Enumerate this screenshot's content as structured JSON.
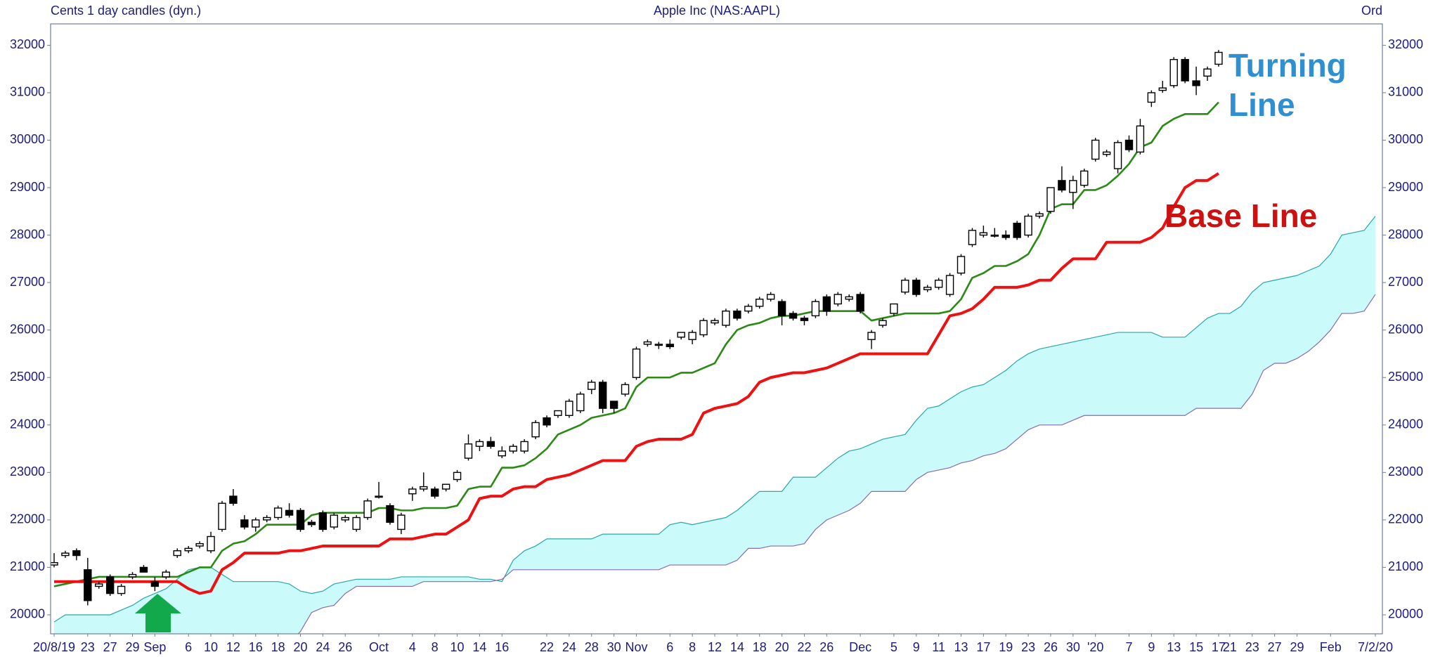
{
  "chart_data": {
    "type": "candlestick",
    "left_label": "Cents 1 day candles (dyn.)",
    "title": "Apple Inc (NAS:AAPL)",
    "right_label": "Ord",
    "categories": [
      "20/8/19",
      null,
      null,
      "23",
      null,
      "27",
      null,
      "29",
      null,
      "Sep",
      null,
      null,
      "6",
      null,
      "10",
      null,
      "12",
      null,
      "16",
      null,
      "18",
      null,
      "20",
      null,
      "24",
      null,
      "26",
      null,
      null,
      "Oct",
      null,
      null,
      "4",
      null,
      "8",
      null,
      "10",
      null,
      "14",
      null,
      "16",
      null,
      null,
      null,
      "22",
      null,
      "24",
      null,
      "28",
      null,
      "30",
      null,
      "Nov",
      null,
      null,
      "6",
      null,
      "8",
      null,
      "12",
      null,
      "14",
      null,
      "18",
      null,
      "20",
      null,
      "22",
      null,
      "26",
      null,
      null,
      "Dec",
      null,
      null,
      "5",
      null,
      "9",
      null,
      "11",
      null,
      "13",
      null,
      "17",
      null,
      "19",
      null,
      "23",
      null,
      "26",
      null,
      "30",
      null,
      "'20",
      null,
      null,
      "7",
      null,
      "9",
      null,
      "13",
      null,
      "15",
      null,
      "17",
      "21",
      null,
      "23",
      null,
      "27",
      null,
      "29",
      null,
      null,
      "Feb",
      null,
      null,
      null,
      "7/2/20"
    ],
    "ylim": [
      19600,
      32450
    ],
    "yticks": [
      20000,
      21000,
      22000,
      23000,
      24000,
      25000,
      26000,
      27000,
      28000,
      29000,
      30000,
      31000,
      32000
    ],
    "up_color": "#ffffff",
    "down_color": "#000000",
    "candles": {
      "open": [
        21050,
        21250,
        21350,
        20950,
        20600,
        20800,
        20450,
        20800,
        21000,
        20700,
        20800,
        21250,
        21350,
        21450,
        21350,
        21800,
        22500,
        22000,
        21850,
        22000,
        22050,
        22200,
        22200,
        21950,
        22150,
        21850,
        22000,
        21800,
        22050,
        22500,
        22300,
        21800,
        22550,
        22650,
        22650,
        22650,
        22850,
        23300,
        23550,
        23650,
        23350,
        23450,
        23450,
        23750,
        24150,
        24200,
        24200,
        24300,
        24750,
        24900,
        24500,
        24650,
        25000,
        25700,
        25700,
        25700,
        25850,
        25800,
        25900,
        26150,
        26100,
        26400,
        26400,
        26500,
        26650,
        26600,
        26350,
        26250,
        26300,
        26700,
        26550,
        26650,
        26750,
        25800,
        26100,
        26350,
        26800,
        27050,
        26850,
        26900,
        26750,
        27200,
        27800,
        28000,
        28000,
        28000,
        28250,
        28000,
        28400,
        28500,
        29150,
        28900,
        29050,
        29600,
        29700,
        29400,
        30000,
        29750,
        30800,
        31050,
        31150,
        31700,
        31250,
        31350,
        31600
      ],
      "high": [
        21300,
        21350,
        21400,
        21200,
        20700,
        20850,
        20650,
        20900,
        21050,
        20800,
        20950,
        21400,
        21450,
        21550,
        21750,
        22400,
        22650,
        22100,
        22050,
        22100,
        22300,
        22350,
        22250,
        22000,
        22200,
        22150,
        22100,
        22100,
        22450,
        22800,
        22350,
        22150,
        22700,
        23000,
        22700,
        22750,
        23050,
        23800,
        23700,
        23750,
        23550,
        23600,
        23700,
        24100,
        24200,
        24300,
        24550,
        24700,
        24950,
        24950,
        24500,
        24900,
        25650,
        25800,
        25750,
        25800,
        25950,
        26000,
        26250,
        26250,
        26450,
        26450,
        26550,
        26700,
        26800,
        26650,
        26400,
        26300,
        26650,
        26750,
        26800,
        26750,
        26800,
        26000,
        26250,
        26550,
        27100,
        27100,
        26950,
        27100,
        27200,
        27600,
        28150,
        28200,
        28150,
        28100,
        28300,
        28450,
        28500,
        29000,
        29450,
        29250,
        29400,
        30050,
        29800,
        30000,
        30100,
        30450,
        31050,
        31250,
        31750,
        31750,
        31550,
        31550,
        31900
      ],
      "low": [
        21000,
        21200,
        21150,
        20200,
        20550,
        20400,
        20400,
        20750,
        20900,
        20500,
        20750,
        21200,
        21300,
        21400,
        21300,
        21750,
        22300,
        21800,
        21750,
        21950,
        22000,
        22050,
        21750,
        21850,
        21750,
        21800,
        21950,
        21750,
        22000,
        22450,
        21900,
        21700,
        22400,
        22600,
        22450,
        22600,
        22800,
        23250,
        23450,
        23500,
        23300,
        23400,
        23400,
        23700,
        23950,
        24150,
        24150,
        24250,
        24650,
        24250,
        24250,
        24600,
        24950,
        25650,
        25600,
        25600,
        25800,
        25700,
        25850,
        26100,
        26050,
        26200,
        26350,
        26450,
        26600,
        26100,
        26200,
        26100,
        26250,
        26300,
        26500,
        26600,
        26350,
        25600,
        26050,
        26300,
        26750,
        26700,
        26800,
        26850,
        26700,
        27150,
        27750,
        27950,
        27950,
        27900,
        27900,
        27950,
        28350,
        28450,
        28900,
        28550,
        29000,
        29550,
        29650,
        29300,
        29750,
        29700,
        30700,
        31000,
        31100,
        31200,
        30950,
        31250,
        31550
      ],
      "close": [
        21100,
        21300,
        21250,
        20300,
        20650,
        20450,
        20600,
        20850,
        20900,
        20600,
        20900,
        21350,
        21400,
        21500,
        21650,
        22350,
        22350,
        21850,
        22000,
        22050,
        22250,
        22100,
        21800,
        21900,
        21800,
        22100,
        22050,
        22050,
        22400,
        22500,
        21950,
        22100,
        22650,
        22700,
        22500,
        22750,
        23000,
        23600,
        23650,
        23550,
        23450,
        23550,
        23650,
        24050,
        24000,
        24300,
        24500,
        24650,
        24900,
        24350,
        24350,
        24850,
        25600,
        25750,
        25700,
        25650,
        25950,
        25950,
        26200,
        26200,
        26400,
        26250,
        26500,
        26650,
        26750,
        26300,
        26250,
        26200,
        26600,
        26400,
        26750,
        26700,
        26400,
        25950,
        26200,
        26550,
        27050,
        26750,
        26900,
        27050,
        27150,
        27550,
        28100,
        28050,
        28000,
        27950,
        27950,
        28400,
        28450,
        29000,
        28950,
        29150,
        29350,
        30000,
        29750,
        29950,
        29800,
        30300,
        31000,
        31100,
        31700,
        31250,
        31150,
        31500,
        31850
      ]
    },
    "lines": [
      {
        "color": "#2a8a14",
        "values": [
          20600,
          20650,
          20700,
          20750,
          20800,
          20800,
          20800,
          20800,
          20800,
          20800,
          20800,
          20800,
          20900,
          21000,
          21000,
          21350,
          21500,
          21550,
          21700,
          21900,
          21900,
          21900,
          21900,
          22100,
          22150,
          22150,
          22150,
          22150,
          22150,
          22250,
          22250,
          22200,
          22200,
          22250,
          22250,
          22250,
          22300,
          22650,
          22700,
          22700,
          23100,
          23100,
          23150,
          23300,
          23500,
          23800,
          23900,
          24000,
          24150,
          24200,
          24250,
          24350,
          24800,
          25000,
          25000,
          25000,
          25100,
          25100,
          25200,
          25300,
          25700,
          26000,
          26100,
          26150,
          26250,
          26300,
          26300,
          26350,
          26400,
          26400,
          26400,
          26400,
          26400,
          26200,
          26250,
          26300,
          26350,
          26350,
          26350,
          26350,
          26400,
          26650,
          27100,
          27200,
          27350,
          27350,
          27450,
          27600,
          28000,
          28550,
          28650,
          28650,
          28950,
          28950,
          29050,
          29250,
          29500,
          29850,
          29950,
          30300,
          30450,
          30550,
          30550,
          30550,
          30800
        ]
      },
      {
        "color": "#ee1111",
        "values": [
          20700,
          20700,
          20700,
          20700,
          20700,
          20700,
          20700,
          20700,
          20700,
          20700,
          20700,
          20700,
          20550,
          20450,
          20500,
          20950,
          21100,
          21300,
          21300,
          21300,
          21300,
          21350,
          21350,
          21400,
          21450,
          21450,
          21450,
          21450,
          21450,
          21450,
          21600,
          21600,
          21600,
          21650,
          21700,
          21700,
          21850,
          22000,
          22450,
          22500,
          22500,
          22650,
          22700,
          22700,
          22850,
          22900,
          22950,
          23050,
          23150,
          23250,
          23250,
          23250,
          23550,
          23650,
          23700,
          23700,
          23700,
          23800,
          24250,
          24350,
          24400,
          24450,
          24600,
          24900,
          25000,
          25050,
          25100,
          25100,
          25150,
          25200,
          25300,
          25400,
          25500,
          25500,
          25500,
          25500,
          25500,
          25500,
          25500,
          25900,
          26300,
          26350,
          26450,
          26650,
          26900,
          26900,
          26900,
          26950,
          27050,
          27050,
          27300,
          27500,
          27500,
          27500,
          27850,
          27850,
          27850,
          27850,
          27950,
          28150,
          28600,
          29000,
          29150,
          29150,
          29300
        ]
      }
    ],
    "cloud": {
      "color": "#cbfafa",
      "span_a_color": "#2aa7a7",
      "span_b_color": "#8a6bb0",
      "span_a": [
        19850,
        20000,
        20000,
        20000,
        20000,
        20000,
        20100,
        20200,
        20350,
        20450,
        20550,
        20750,
        20950,
        21000,
        21000,
        20850,
        20700,
        20700,
        20700,
        20700,
        20700,
        20650,
        20500,
        20450,
        20500,
        20650,
        20700,
        20750,
        20750,
        20750,
        20750,
        20800,
        20800,
        20800,
        20800,
        20800,
        20800,
        20800,
        20750,
        20750,
        20700,
        21150,
        21350,
        21450,
        21600,
        21600,
        21600,
        21600,
        21600,
        21700,
        21700,
        21700,
        21700,
        21700,
        21700,
        21900,
        21950,
        21900,
        21950,
        22000,
        22050,
        22200,
        22400,
        22600,
        22600,
        22600,
        22900,
        22900,
        22900,
        23100,
        23300,
        23450,
        23500,
        23600,
        23700,
        23750,
        23800,
        24100,
        24350,
        24400,
        24550,
        24700,
        24800,
        24850,
        25000,
        25150,
        25350,
        25500,
        25600,
        25650,
        25700,
        25750,
        25800,
        25850,
        25900,
        25950,
        25950,
        25950,
        25950,
        25850,
        25850,
        25850,
        26050,
        26250,
        26350,
        26350,
        26500,
        26800,
        27000,
        27050,
        27100,
        27150,
        27250,
        27350,
        27600,
        28000,
        28050,
        28100,
        28400
      ],
      "span_b": [
        19400,
        19400,
        19400,
        19400,
        19400,
        19400,
        19400,
        19400,
        19400,
        19400,
        19400,
        19400,
        19400,
        19400,
        19400,
        19400,
        19400,
        19400,
        19400,
        19400,
        19400,
        19400,
        19650,
        20050,
        20150,
        20200,
        20450,
        20600,
        20600,
        20600,
        20600,
        20600,
        20600,
        20700,
        20700,
        20700,
        20700,
        20700,
        20700,
        20700,
        20750,
        20950,
        20950,
        20950,
        20950,
        20950,
        20950,
        20950,
        20950,
        20950,
        20950,
        20950,
        20950,
        20950,
        20950,
        21050,
        21050,
        21050,
        21050,
        21050,
        21050,
        21150,
        21400,
        21400,
        21450,
        21450,
        21450,
        21500,
        21800,
        22000,
        22100,
        22200,
        22350,
        22600,
        22600,
        22600,
        22600,
        22850,
        23000,
        23050,
        23100,
        23200,
        23250,
        23350,
        23400,
        23500,
        23700,
        23900,
        24000,
        24000,
        24000,
        24100,
        24200,
        24200,
        24200,
        24200,
        24200,
        24200,
        24200,
        24200,
        24200,
        24200,
        24350,
        24350,
        24350,
        24350,
        24350,
        24650,
        25150,
        25300,
        25300,
        25400,
        25550,
        25750,
        26000,
        26350,
        26350,
        26400,
        26750
      ]
    },
    "annotations": [
      {
        "text": [
          "Turning",
          "Line"
        ],
        "color": "#2e90d0"
      },
      {
        "text": [
          "Base Line"
        ],
        "color": "#cc1111"
      }
    ]
  }
}
